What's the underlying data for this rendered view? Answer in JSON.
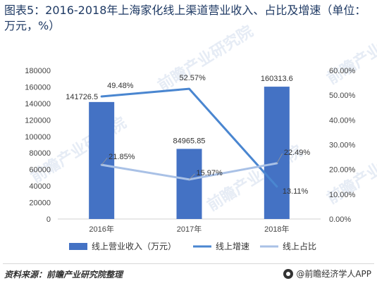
{
  "title": "图表5：2016-2018年上海家化线上渠道营业收入、占比及增速（单位：万元，%）",
  "footer": {
    "source": "资料来源：前瞻产业研究院整理",
    "brand": "@前瞻经济学人APP"
  },
  "watermark": "前瞻产业研究院",
  "colors": {
    "bar": "#4472c4",
    "growth_line": "#4a86d0",
    "share_line": "#a9c1e6"
  },
  "chart_data": {
    "type": "bar",
    "categories": [
      "2016年",
      "2017年",
      "2018年"
    ],
    "series": [
      {
        "name": "线上营业收入（万元）",
        "type": "bar",
        "axis": "left",
        "values": [
          141726.5,
          84965.85,
          160313.6
        ],
        "labels": [
          "141726.5",
          "84965.85",
          "160313.6"
        ]
      },
      {
        "name": "线上增速",
        "type": "line",
        "axis": "right",
        "values": [
          49.48,
          52.57,
          13.11
        ],
        "labels": [
          "49.48%",
          "52.57%",
          "13.11%"
        ]
      },
      {
        "name": "线上占比",
        "type": "line",
        "axis": "right",
        "values": [
          21.85,
          15.97,
          22.49
        ],
        "labels": [
          "21.85%",
          "15.97%",
          "22.49%"
        ]
      }
    ],
    "y_left": {
      "min": 0,
      "max": 180000,
      "ticks": [
        "0",
        "20000",
        "40000",
        "60000",
        "80000",
        "100000",
        "120000",
        "140000",
        "160000",
        "180000"
      ]
    },
    "y_right": {
      "min": 0,
      "max": 60,
      "ticks": [
        "0.00%",
        "10.00%",
        "20.00%",
        "30.00%",
        "40.00%",
        "50.00%",
        "60.00%"
      ]
    },
    "legend_position": "bottom",
    "grid": false
  }
}
